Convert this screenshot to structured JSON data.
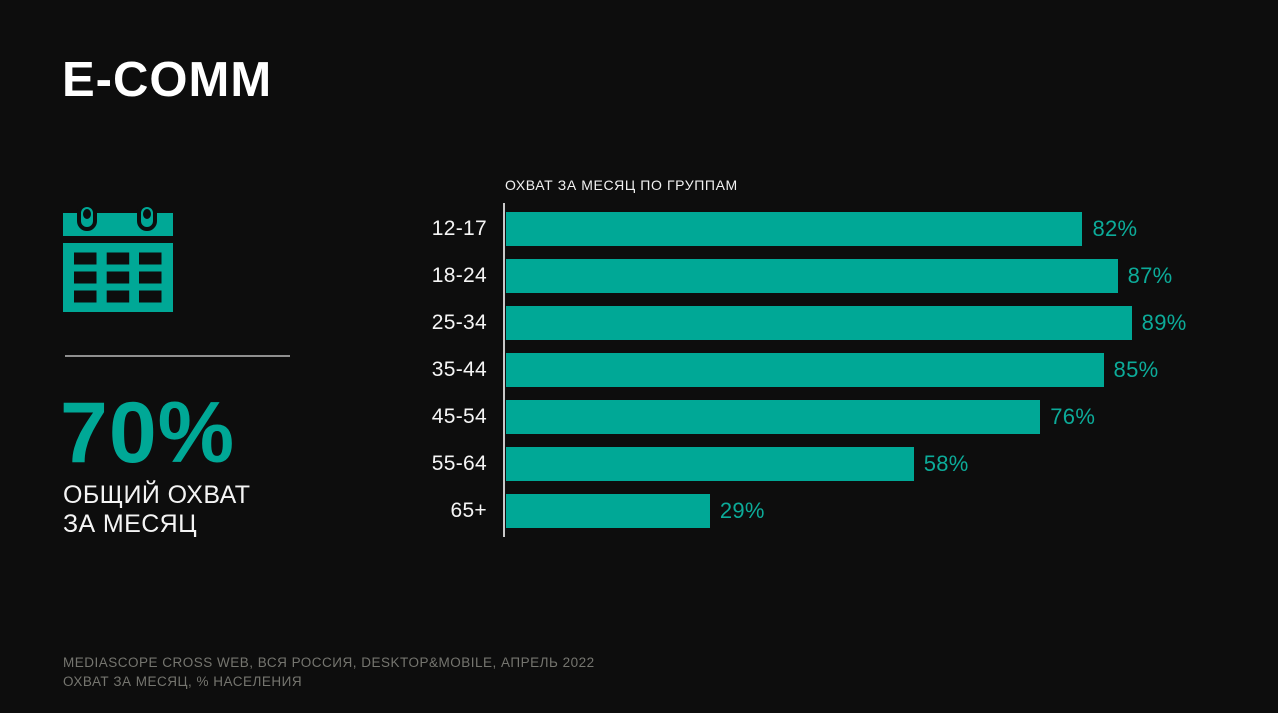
{
  "slide": {
    "title": "E-COMM"
  },
  "stat": {
    "value": "70%",
    "label_line1": "ОБЩИЙ ОХВАТ",
    "label_line2": "ЗА МЕСЯЦ"
  },
  "footer": {
    "line1": "MEDIASCOPE CROSS WEB, ВСЯ РОССИЯ, DESKTOP&MOBILE, АПРЕЛЬ 2022",
    "line2": "ОХВАТ ЗА МЕСЯЦ, % НАСЕЛЕНИЯ"
  },
  "icons": {
    "calendar": "calendar-icon"
  },
  "colors": {
    "background": "#0d0d0d",
    "accent": "#00a896",
    "text": "#ffffff",
    "muted": "#75756f",
    "axis": "#c9c9c9",
    "divider": "#8f8f8f"
  },
  "chart_data": {
    "type": "bar",
    "orientation": "horizontal",
    "title": "ОХВАТ ЗА МЕСЯЦ ПО ГРУППАМ",
    "categories": [
      "12-17",
      "18-24",
      "25-34",
      "35-44",
      "45-54",
      "55-64",
      "65+"
    ],
    "values": [
      82,
      87,
      89,
      85,
      76,
      58,
      29
    ],
    "value_labels": [
      "82%",
      "87%",
      "89%",
      "85%",
      "76%",
      "58%",
      "29%"
    ],
    "xlabel": "",
    "ylabel": "",
    "xlim": [
      0,
      100
    ],
    "grid": false,
    "legend": false,
    "bar_color": "#00a896",
    "value_label_color": "#0cab99"
  }
}
